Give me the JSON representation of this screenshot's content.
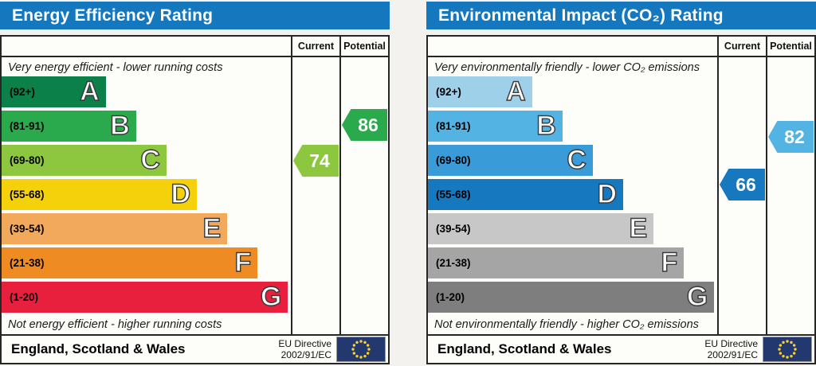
{
  "page": {
    "background": "#f3f2ee",
    "border_color": "#262626"
  },
  "eu_flag": {
    "bg": "#23386f",
    "star_color": "#f8d12c"
  },
  "chart_data": [
    {
      "type": "bar",
      "title": "Energy Efficiency Rating",
      "header_color": "#1577bd",
      "columns": [
        "Current",
        "Potential"
      ],
      "top_note": "Very energy efficient - lower running costs",
      "bottom_note": "Not energy efficient - higher running costs",
      "bands": [
        {
          "letter": "A",
          "range": "(92+)",
          "color": "#0c8049",
          "width_pct": 36
        },
        {
          "letter": "B",
          "range": "(81-91)",
          "color": "#2ba94d",
          "width_pct": 46.5
        },
        {
          "letter": "C",
          "range": "(69-80)",
          "color": "#8dc63f",
          "width_pct": 57
        },
        {
          "letter": "D",
          "range": "(55-68)",
          "color": "#f5d10c",
          "width_pct": 67.5
        },
        {
          "letter": "E",
          "range": "(39-54)",
          "color": "#f3a95c",
          "width_pct": 78
        },
        {
          "letter": "F",
          "range": "(21-38)",
          "color": "#ee8b22",
          "width_pct": 88.5
        },
        {
          "letter": "G",
          "range": "(1-20)",
          "color": "#e8203e",
          "width_pct": 99
        }
      ],
      "current": {
        "value": 74,
        "band": "C",
        "color": "#8dc63f"
      },
      "potential": {
        "value": 86,
        "band": "B",
        "color": "#2ba94d"
      },
      "footer": {
        "region": "England, Scotland & Wales",
        "directive_line1": "EU Directive",
        "directive_line2": "2002/91/EC"
      }
    },
    {
      "type": "bar",
      "title": "Environmental Impact (CO₂) Rating",
      "header_color": "#1577bd",
      "columns": [
        "Current",
        "Potential"
      ],
      "top_note": "Very environmentally friendly - lower CO₂ emissions",
      "bottom_note": "Not environmentally friendly - higher CO₂ emissions",
      "bands": [
        {
          "letter": "A",
          "range": "(92+)",
          "color": "#9fd0ea",
          "width_pct": 36
        },
        {
          "letter": "B",
          "range": "(81-91)",
          "color": "#53b4e3",
          "width_pct": 46.5
        },
        {
          "letter": "C",
          "range": "(69-80)",
          "color": "#3a9bd9",
          "width_pct": 57
        },
        {
          "letter": "D",
          "range": "(55-68)",
          "color": "#1678bf",
          "width_pct": 67.5
        },
        {
          "letter": "E",
          "range": "(39-54)",
          "color": "#c7c7c7",
          "width_pct": 78
        },
        {
          "letter": "F",
          "range": "(21-38)",
          "color": "#a5a5a5",
          "width_pct": 88.5
        },
        {
          "letter": "G",
          "range": "(1-20)",
          "color": "#7e7e7e",
          "width_pct": 99
        }
      ],
      "current": {
        "value": 66,
        "band": "D",
        "color": "#1678bf"
      },
      "potential": {
        "value": 82,
        "band": "B",
        "color": "#53b4e3"
      },
      "footer": {
        "region": "England, Scotland & Wales",
        "directive_line1": "EU Directive",
        "directive_line2": "2002/91/EC"
      }
    }
  ]
}
